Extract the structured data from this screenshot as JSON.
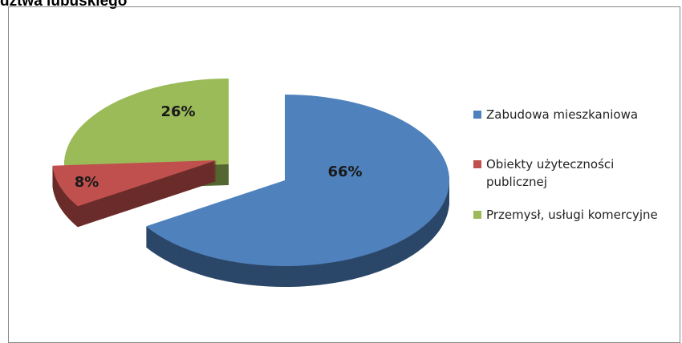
{
  "chart_data": {
    "type": "pie",
    "title": "dztwa lubuskiego",
    "categories": [
      "Zabudowa mieszkaniowa",
      "Obiekty użyteczności publicznej",
      "Przemysł, usługi komercyjne"
    ],
    "values": [
      66,
      8,
      26
    ],
    "value_labels": [
      "66%",
      "8%",
      "26%"
    ],
    "colors": [
      "#4f81bd",
      "#c0504d",
      "#9bbb59"
    ],
    "legend": "right"
  }
}
